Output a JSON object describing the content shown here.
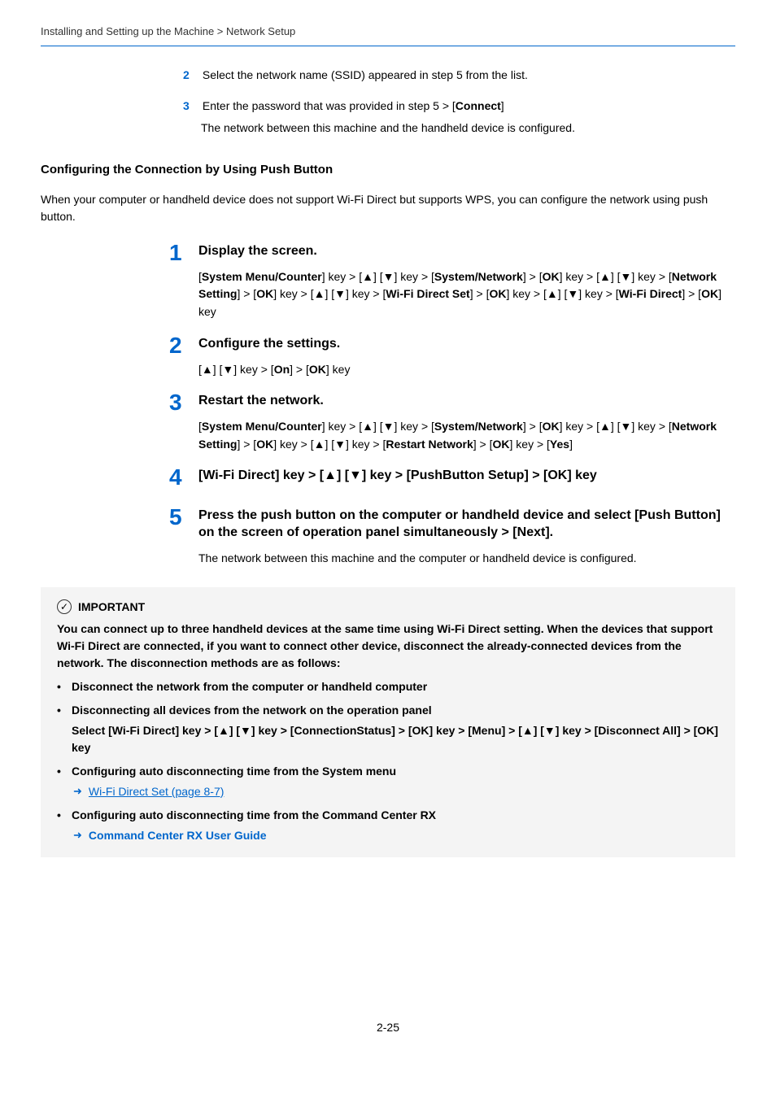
{
  "breadcrumb": "Installing and Setting up the Machine > Network Setup",
  "substeps": [
    {
      "num": "2",
      "text": "Select the network name (SSID) appeared in step 5 from the list."
    },
    {
      "num": "3",
      "text_a": "Enter the password that was provided in step 5 > [",
      "bold": "Connect",
      "text_b": "]",
      "indent": "The network between this machine and the handheld device is configured."
    }
  ],
  "section": {
    "heading": "Configuring the Connection by Using Push Button",
    "intro": "When your computer or handheld device does not support Wi-Fi Direct but supports WPS, you can configure the network using push button."
  },
  "steps": {
    "s1": {
      "num": "1",
      "title": "Display the screen.",
      "body": "[<b>System Menu/Counter</b>] key > [▲] [▼] key > [<b>System/Network</b>] > [<b>OK</b>] key > [▲] [▼] key > [<b>Network Setting</b>] > [<b>OK</b>] key > [▲] [▼] key > [<b>Wi-Fi Direct Set</b>] > [<b>OK</b>] key > [▲] [▼] key > [<b>Wi-Fi Direct</b>] > [<b>OK</b>] key"
    },
    "s2": {
      "num": "2",
      "title": "Configure the settings.",
      "body": "[▲] [▼] key > [<b>On</b>] > [<b>OK</b>] key"
    },
    "s3": {
      "num": "3",
      "title": "Restart the network.",
      "body": "[<b>System Menu/Counter</b>] key > [▲] [▼] key > [<b>System/Network</b>] > [<b>OK</b>] key > [▲] [▼] key > [<b>Network Setting</b>] > [<b>OK</b>] key > [▲] [▼] key > [<b>Restart Network</b>] > [<b>OK</b>] key > [<b>Yes</b>]"
    },
    "s4": {
      "num": "4",
      "title": "[Wi-Fi Direct] key > [▲] [▼] key > [PushButton Setup] > [OK] key"
    },
    "s5": {
      "num": "5",
      "title": "Press the push button on the computer or handheld device and select [Push Button] on the screen of operation panel simultaneously > [Next].",
      "body_plain": "The network between this machine and the computer or handheld device is configured."
    }
  },
  "important": {
    "label": "IMPORTANT",
    "body": "You can connect up to three handheld devices at the same time using Wi-Fi Direct setting. When the devices that support Wi-Fi Direct are connected, if you want to connect other device, disconnect the already-connected devices from the network. The disconnection methods are as follows:",
    "b1": "Disconnect the network from the computer or handheld computer",
    "b2": "Disconnecting all devices from the network on the operation panel",
    "b2_sub": "Select [Wi-Fi Direct] key > [▲] [▼] key > [ConnectionStatus] > [OK] key > [Menu] > [▲] [▼] key > [Disconnect All] > [OK] key",
    "b3": "Configuring auto disconnecting time from the System menu",
    "b3_link": "Wi-Fi Direct Set (page 8-7)",
    "b4": "Configuring auto disconnecting time from the Command Center RX",
    "b4_link": "Command Center RX User Guide"
  },
  "page_number": "2-25"
}
